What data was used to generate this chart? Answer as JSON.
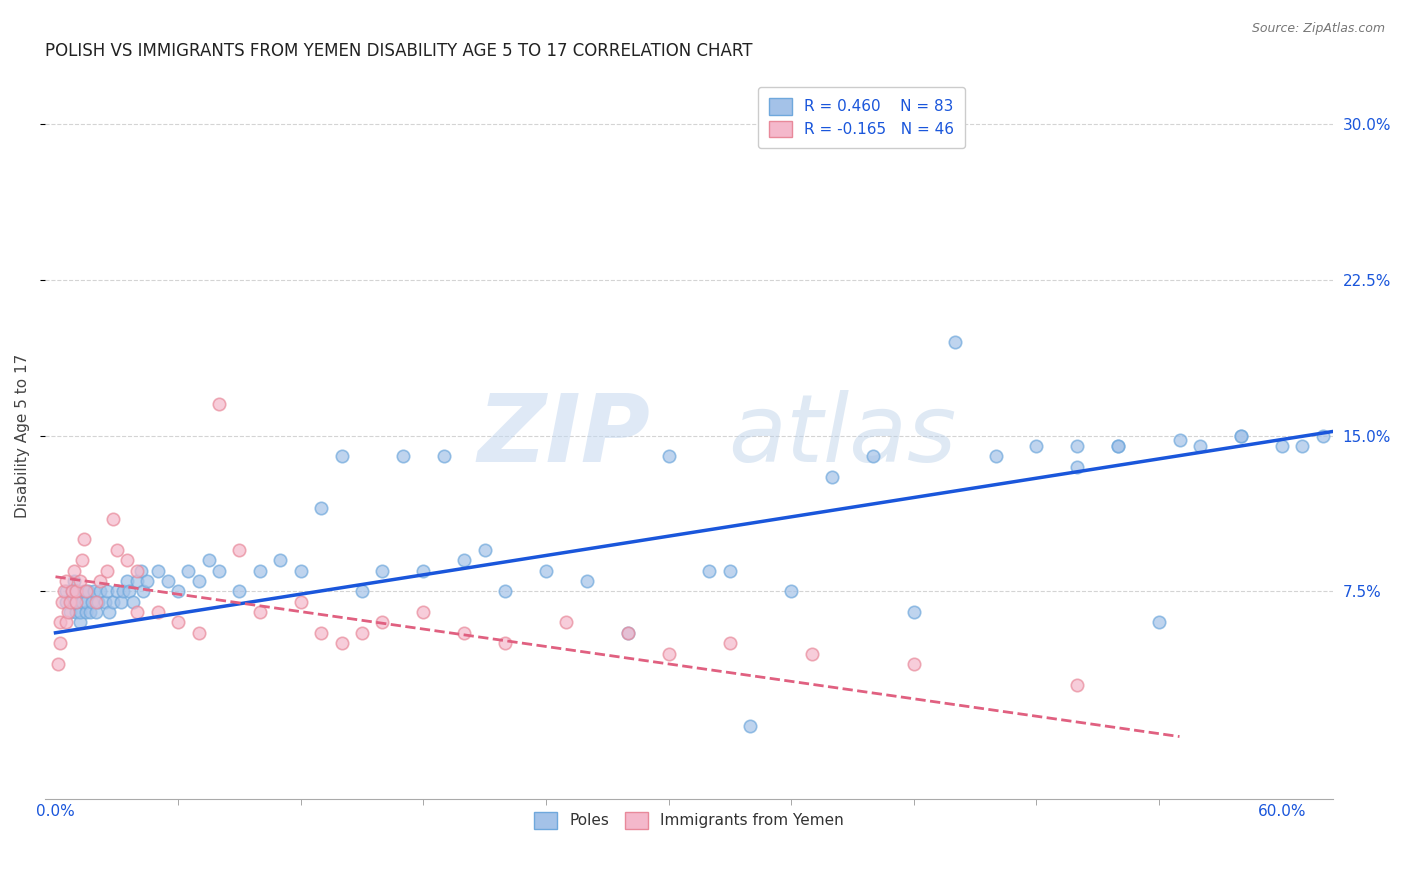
{
  "title": "POLISH VS IMMIGRANTS FROM YEMEN DISABILITY AGE 5 TO 17 CORRELATION CHART",
  "source": "Source: ZipAtlas.com",
  "ylabel": "Disability Age 5 to 17",
  "x_ticks": [
    0.0,
    0.6
  ],
  "x_tick_labels": [
    "0.0%",
    "60.0%"
  ],
  "y_ticks": [
    0.075,
    0.15,
    0.225,
    0.3
  ],
  "y_tick_labels_right": [
    "7.5%",
    "15.0%",
    "22.5%",
    "30.0%"
  ],
  "xlim": [
    -0.005,
    0.625
  ],
  "ylim": [
    -0.025,
    0.325
  ],
  "blue_color": "#a4c2e8",
  "pink_color": "#f4b8cb",
  "blue_edge_color": "#6fa8dc",
  "pink_edge_color": "#e8899a",
  "blue_line_color": "#1a56db",
  "pink_line_color": "#e06080",
  "legend_R_blue": "R = 0.460",
  "legend_N_blue": "N = 83",
  "legend_R_pink": "R = -0.165",
  "legend_N_pink": "N = 46",
  "watermark_zip": "ZIP",
  "watermark_atlas": "atlas",
  "blue_scatter_x": [
    0.005,
    0.005,
    0.007,
    0.008,
    0.008,
    0.009,
    0.01,
    0.01,
    0.01,
    0.012,
    0.012,
    0.013,
    0.014,
    0.015,
    0.015,
    0.016,
    0.017,
    0.018,
    0.019,
    0.02,
    0.021,
    0.022,
    0.024,
    0.025,
    0.026,
    0.028,
    0.03,
    0.032,
    0.033,
    0.035,
    0.036,
    0.038,
    0.04,
    0.042,
    0.043,
    0.045,
    0.05,
    0.055,
    0.06,
    0.065,
    0.07,
    0.075,
    0.08,
    0.09,
    0.1,
    0.11,
    0.12,
    0.13,
    0.14,
    0.15,
    0.16,
    0.17,
    0.18,
    0.19,
    0.2,
    0.21,
    0.22,
    0.24,
    0.26,
    0.28,
    0.3,
    0.32,
    0.34,
    0.33,
    0.36,
    0.38,
    0.4,
    0.42,
    0.44,
    0.46,
    0.48,
    0.5,
    0.52,
    0.54,
    0.56,
    0.58,
    0.6,
    0.61,
    0.62,
    0.5,
    0.52,
    0.55,
    0.58
  ],
  "blue_scatter_y": [
    0.075,
    0.07,
    0.065,
    0.07,
    0.075,
    0.08,
    0.065,
    0.07,
    0.075,
    0.06,
    0.065,
    0.07,
    0.075,
    0.065,
    0.07,
    0.075,
    0.065,
    0.07,
    0.075,
    0.065,
    0.07,
    0.075,
    0.07,
    0.075,
    0.065,
    0.07,
    0.075,
    0.07,
    0.075,
    0.08,
    0.075,
    0.07,
    0.08,
    0.085,
    0.075,
    0.08,
    0.085,
    0.08,
    0.075,
    0.085,
    0.08,
    0.09,
    0.085,
    0.075,
    0.085,
    0.09,
    0.085,
    0.115,
    0.14,
    0.075,
    0.085,
    0.14,
    0.085,
    0.14,
    0.09,
    0.095,
    0.075,
    0.085,
    0.08,
    0.055,
    0.14,
    0.085,
    0.01,
    0.085,
    0.075,
    0.13,
    0.14,
    0.065,
    0.195,
    0.14,
    0.145,
    0.135,
    0.145,
    0.06,
    0.145,
    0.15,
    0.145,
    0.145,
    0.15,
    0.145,
    0.145,
    0.148,
    0.15
  ],
  "pink_scatter_x": [
    0.001,
    0.002,
    0.002,
    0.003,
    0.004,
    0.005,
    0.005,
    0.006,
    0.007,
    0.008,
    0.009,
    0.01,
    0.01,
    0.012,
    0.013,
    0.014,
    0.015,
    0.02,
    0.022,
    0.025,
    0.028,
    0.03,
    0.035,
    0.04,
    0.04,
    0.05,
    0.06,
    0.07,
    0.08,
    0.09,
    0.1,
    0.12,
    0.13,
    0.14,
    0.15,
    0.16,
    0.18,
    0.2,
    0.22,
    0.25,
    0.28,
    0.3,
    0.33,
    0.37,
    0.42,
    0.5
  ],
  "pink_scatter_y": [
    0.04,
    0.05,
    0.06,
    0.07,
    0.075,
    0.08,
    0.06,
    0.065,
    0.07,
    0.075,
    0.085,
    0.07,
    0.075,
    0.08,
    0.09,
    0.1,
    0.075,
    0.07,
    0.08,
    0.085,
    0.11,
    0.095,
    0.09,
    0.085,
    0.065,
    0.065,
    0.06,
    0.055,
    0.165,
    0.095,
    0.065,
    0.07,
    0.055,
    0.05,
    0.055,
    0.06,
    0.065,
    0.055,
    0.05,
    0.06,
    0.055,
    0.045,
    0.05,
    0.045,
    0.04,
    0.03
  ],
  "blue_line_x": [
    0.0,
    0.625
  ],
  "blue_line_y_start": 0.055,
  "blue_line_y_end": 0.152,
  "pink_line_x": [
    0.0,
    0.55
  ],
  "pink_line_y_start": 0.082,
  "pink_line_y_end": 0.005,
  "background_color": "#ffffff",
  "grid_color": "#d0d0d0",
  "title_fontsize": 12,
  "axis_label_fontsize": 11,
  "tick_fontsize": 11,
  "legend_fontsize": 11
}
